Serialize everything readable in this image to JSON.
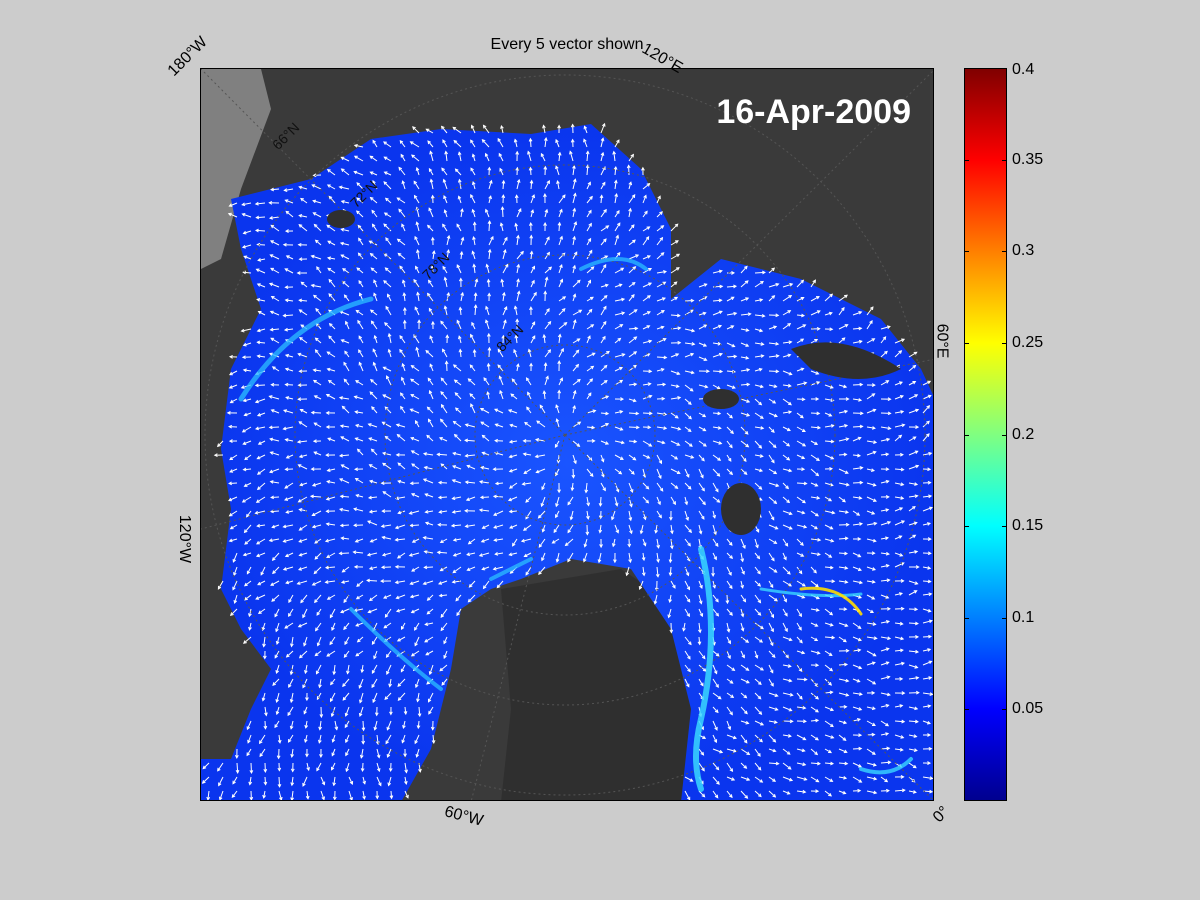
{
  "title": "Every 5 vector shown",
  "date": "16-Apr-2009",
  "longitude_labels": [
    "180°W",
    "120°E",
    "60°E",
    "0°",
    "60°W",
    "120°W"
  ],
  "latitude_labels": [
    "66°N",
    "72°N",
    "78°N",
    "84°N"
  ],
  "colorbar": {
    "ticks": [
      "0.4",
      "0.35",
      "0.3",
      "0.25",
      "0.2",
      "0.15",
      "0.1",
      "0.05"
    ],
    "tick_values": [
      0.4,
      0.35,
      0.3,
      0.25,
      0.2,
      0.15,
      0.1,
      0.05
    ],
    "range": [
      0,
      0.4
    ],
    "colormap": "jet"
  },
  "colors": {
    "background": "#cccccc",
    "land": "#3a3a3a",
    "ice": "#0a3cf0",
    "vector": "#ffffff"
  }
}
